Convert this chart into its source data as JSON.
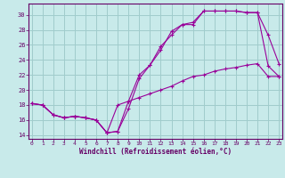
{
  "xlabel": "Windchill (Refroidissement éolien,°C)",
  "bg_color": "#c8eaea",
  "grid_color": "#a0cccc",
  "line_color": "#990099",
  "xlim": [
    -0.3,
    23.3
  ],
  "ylim": [
    13.5,
    31.5
  ],
  "xticks": [
    0,
    1,
    2,
    3,
    4,
    5,
    6,
    7,
    8,
    9,
    10,
    11,
    12,
    13,
    14,
    15,
    16,
    17,
    18,
    19,
    20,
    21,
    22,
    23
  ],
  "yticks": [
    14,
    16,
    18,
    20,
    22,
    24,
    26,
    28,
    30
  ],
  "line1_x": [
    0,
    1,
    2,
    3,
    4,
    5,
    6,
    7,
    8,
    9,
    10,
    11,
    12,
    13,
    14,
    15,
    16,
    17,
    18,
    19,
    20,
    21,
    22,
    23
  ],
  "line1_y": [
    18.2,
    18.0,
    16.7,
    16.3,
    16.5,
    16.3,
    16.0,
    14.3,
    14.5,
    18.5,
    22.0,
    23.3,
    25.3,
    27.8,
    28.7,
    28.7,
    30.5,
    30.5,
    30.5,
    30.5,
    30.3,
    30.3,
    27.3,
    23.5
  ],
  "line2_x": [
    0,
    1,
    2,
    3,
    4,
    5,
    6,
    7,
    8,
    9,
    10,
    11,
    12,
    13,
    14,
    15,
    16,
    17,
    18,
    19,
    20,
    21,
    22,
    23
  ],
  "line2_y": [
    18.2,
    18.0,
    16.7,
    16.3,
    16.5,
    16.3,
    16.0,
    14.3,
    14.5,
    17.5,
    21.5,
    23.3,
    25.8,
    27.3,
    28.7,
    29.0,
    30.5,
    30.5,
    30.5,
    30.5,
    30.3,
    30.3,
    23.2,
    21.8
  ],
  "line3_x": [
    0,
    1,
    2,
    3,
    4,
    5,
    6,
    7,
    8,
    9,
    10,
    11,
    12,
    13,
    14,
    15,
    16,
    17,
    18,
    19,
    20,
    21,
    22,
    23
  ],
  "line3_y": [
    18.2,
    18.0,
    16.7,
    16.3,
    16.5,
    16.3,
    16.0,
    14.3,
    18.0,
    18.5,
    19.0,
    19.5,
    20.0,
    20.5,
    21.2,
    21.8,
    22.0,
    22.5,
    22.8,
    23.0,
    23.3,
    23.5,
    21.8,
    21.8
  ]
}
